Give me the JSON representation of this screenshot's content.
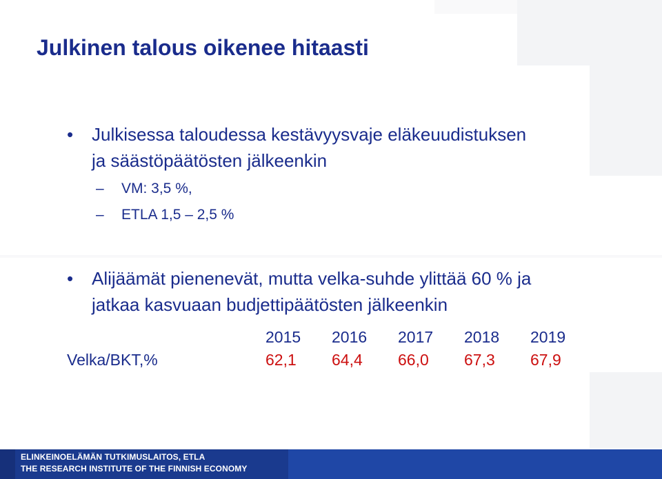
{
  "title": "Julkinen talous oikenee hitaasti",
  "bullets": [
    {
      "marker": "•",
      "lines": [
        "Julkisessa taloudessa kestävyysvaje eläkeuudistuksen",
        "ja säästöpäätösten jälkeenkin"
      ],
      "subitems": [
        {
          "marker": "–",
          "text": "VM: 3,5 %,"
        },
        {
          "marker": "–",
          "text": "ETLA 1,5 – 2,5 %"
        }
      ]
    },
    {
      "marker": "•",
      "lines": [
        "Alijäämät pienenevät, mutta velka-suhde ylittää 60 % ja",
        "jatkaa kasvuaan budjettipäätösten jälkeenkin"
      ]
    }
  ],
  "table": {
    "row_label": "Velka/BKT,%",
    "years": [
      "2015",
      "2016",
      "2017",
      "2018",
      "2019"
    ],
    "values": [
      "62,1",
      "64,4",
      "66,0",
      "67,3",
      "67,9"
    ]
  },
  "footer": {
    "line1": "ELINKEINOELÄMÄN TUTKIMUSLAITOS, ETLA",
    "line2": "THE RESEARCH INSTITUTE OF THE FINNISH ECONOMY"
  },
  "colors": {
    "text": "#1a2c8c",
    "values": "#cc1010",
    "footer": "#1a3a8e"
  }
}
